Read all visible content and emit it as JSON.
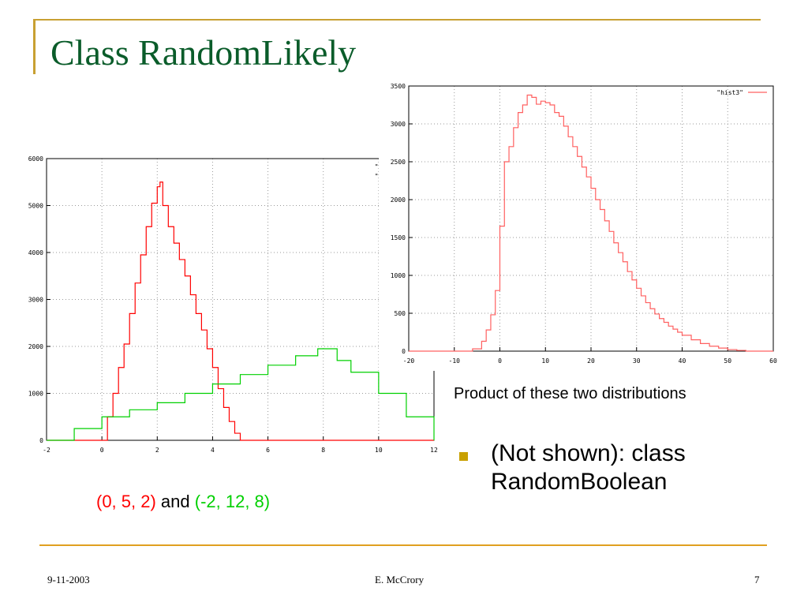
{
  "slide": {
    "title": "Class RandomLikely",
    "caption_left": {
      "red_text": "(0, 5, 2)",
      "mid_text": " and ",
      "green_text": "(-2, 12, 8)"
    },
    "caption_right": "Product of these two distributions",
    "bullet": "(Not shown): class RandomBoolean",
    "footer": {
      "date": "9-11-2003",
      "author": "E. McCrory",
      "page": "7"
    },
    "colors": {
      "title": "#0a5c2a",
      "accent_rule": "#c8a032",
      "red": "#ff0000",
      "green": "#00d000"
    }
  },
  "chart_data": [
    {
      "type": "line",
      "title": "",
      "xlabel": "",
      "ylabel": "",
      "xlim": [
        -2,
        12
      ],
      "ylim": [
        0,
        6000
      ],
      "xticks": [
        -2,
        0,
        2,
        4,
        6,
        8,
        10,
        12
      ],
      "yticks": [
        0,
        1000,
        2000,
        3000,
        4000,
        5000,
        6000
      ],
      "grid": true,
      "legend_position": "top-right, partially hidden",
      "legend_entries": [
        "\"his",
        "\"his"
      ],
      "series": [
        {
          "color": "#ff0000",
          "x": [
            -2,
            0,
            0.2,
            0.4,
            0.6,
            0.8,
            1.0,
            1.2,
            1.4,
            1.6,
            1.8,
            2.0,
            2.1,
            2.2,
            2.4,
            2.6,
            2.8,
            3.0,
            3.2,
            3.4,
            3.6,
            3.8,
            4.0,
            4.2,
            4.4,
            4.6,
            4.8,
            5.0,
            12
          ],
          "y": [
            0,
            0,
            500,
            1000,
            1550,
            2050,
            2700,
            3350,
            3950,
            4550,
            5050,
            5400,
            5500,
            5000,
            4550,
            4200,
            3850,
            3500,
            3100,
            2700,
            2350,
            1950,
            1550,
            1100,
            700,
            400,
            150,
            0,
            0
          ]
        },
        {
          "color": "#00d000",
          "x": [
            -2,
            -1,
            0,
            1,
            2,
            3,
            4,
            5,
            6,
            7,
            7.8,
            8,
            8.5,
            9,
            10,
            11,
            12
          ],
          "y": [
            0,
            250,
            500,
            650,
            800,
            1000,
            1200,
            1400,
            1600,
            1800,
            1950,
            1950,
            1700,
            1450,
            1000,
            500,
            0
          ]
        }
      ]
    },
    {
      "type": "line",
      "title": "",
      "xlabel": "",
      "ylabel": "",
      "xlim": [
        -20,
        60
      ],
      "ylim": [
        0,
        3500
      ],
      "xticks": [
        -20,
        -10,
        0,
        10,
        20,
        30,
        40,
        50,
        60
      ],
      "yticks": [
        0,
        500,
        1000,
        1500,
        2000,
        2500,
        3000,
        3500
      ],
      "grid": true,
      "legend_position": "top-right",
      "legend_entries": [
        "\"hist3\""
      ],
      "series": [
        {
          "name": "\"hist3\"",
          "color": "#ff6060",
          "x": [
            -20,
            -8,
            -6,
            -4,
            -3,
            -2,
            -1,
            0,
            1,
            2,
            3,
            4,
            5,
            6,
            7,
            8,
            9,
            10,
            11,
            12,
            13,
            14,
            15,
            16,
            17,
            18,
            19,
            20,
            21,
            22,
            23,
            24,
            25,
            26,
            27,
            28,
            29,
            30,
            31,
            32,
            33,
            34,
            35,
            36,
            37,
            38,
            39,
            40,
            42,
            44,
            46,
            48,
            50,
            52,
            54,
            60
          ],
          "y": [
            0,
            0,
            30,
            130,
            280,
            480,
            800,
            1650,
            2500,
            2700,
            2950,
            3150,
            3250,
            3380,
            3350,
            3260,
            3300,
            3280,
            3250,
            3150,
            3100,
            2970,
            2830,
            2700,
            2570,
            2430,
            2300,
            2150,
            2000,
            1870,
            1720,
            1580,
            1430,
            1300,
            1180,
            1050,
            940,
            830,
            730,
            640,
            560,
            490,
            430,
            380,
            330,
            290,
            250,
            210,
            150,
            100,
            65,
            40,
            20,
            10,
            0,
            0
          ]
        }
      ]
    }
  ]
}
